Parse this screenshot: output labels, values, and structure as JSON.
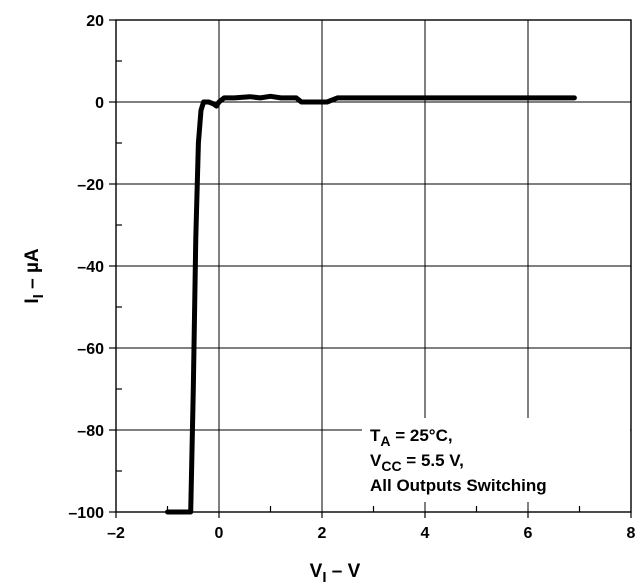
{
  "chart_data": {
    "type": "line",
    "xlabel": {
      "main": "V",
      "sub": "I",
      "rest": " – V"
    },
    "ylabel": {
      "main": "I",
      "sub": "I",
      "rest": " – µA"
    },
    "xlim": [
      -2,
      8
    ],
    "ylim": [
      -100,
      20
    ],
    "xticks": [
      -2,
      0,
      2,
      4,
      6,
      8
    ],
    "xtick_labels": [
      "–2",
      "0",
      "2",
      "4",
      "6",
      "8"
    ],
    "yticks": [
      20,
      0,
      -20,
      -40,
      -60,
      -80,
      -100
    ],
    "ytick_labels": [
      "20",
      "0",
      "–20",
      "–40",
      "–60",
      "–80",
      "–100"
    ],
    "x_minor_step": 1,
    "y_minor_step": 10,
    "grid": true,
    "annotation": {
      "line1": {
        "main": "T",
        "sub": "A",
        "rest": " = 25°C,"
      },
      "line2": {
        "main": "V",
        "sub": "CC",
        "rest": " = 5.5 V,"
      },
      "line3": "All Outputs Switching"
    },
    "series": [
      {
        "x": [
          -1.0,
          -0.55,
          -0.5,
          -0.45,
          -0.4,
          -0.35,
          -0.3,
          -0.2,
          -0.1,
          -0.05,
          0.0,
          0.1,
          0.3,
          0.6,
          0.8,
          1.0,
          1.2,
          1.5,
          1.6,
          2.0,
          2.1,
          2.3,
          3.0,
          4.0,
          5.0,
          6.0,
          6.9
        ],
        "y": [
          -100,
          -100,
          -70,
          -33,
          -10,
          -2,
          0,
          0,
          -0.5,
          -1,
          0,
          1,
          1,
          1.3,
          1,
          1.4,
          1,
          1,
          0,
          0,
          0,
          1,
          1,
          1,
          1,
          1,
          1
        ]
      }
    ]
  }
}
